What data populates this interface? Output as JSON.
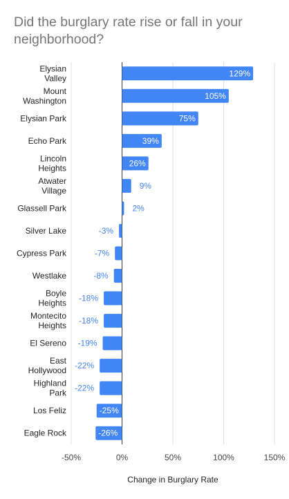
{
  "chart_data": {
    "type": "bar",
    "orientation": "horizontal",
    "title": "Did the burglary rate rise or fall in your neighborhood?",
    "xlabel": "Change in Burglary Rate",
    "ylabel": "",
    "categories": [
      [
        "Elysian",
        "Valley"
      ],
      [
        "Mount",
        "Washington"
      ],
      [
        "Elysian Park"
      ],
      [
        "Echo Park"
      ],
      [
        "Lincoln",
        "Heights"
      ],
      [
        "Atwater",
        "Village"
      ],
      [
        "Glassell Park"
      ],
      [
        "Silver Lake"
      ],
      [
        "Cypress Park"
      ],
      [
        "Westlake"
      ],
      [
        "Boyle",
        "Heights"
      ],
      [
        "Montecito",
        "Heights"
      ],
      [
        "El Sereno"
      ],
      [
        "East",
        "Hollywood"
      ],
      [
        "Highland",
        "Park"
      ],
      [
        "Los Feliz"
      ],
      [
        "Eagle Rock"
      ]
    ],
    "values": [
      129,
      105,
      75,
      39,
      26,
      9,
      2,
      -3,
      -7,
      -8,
      -18,
      -18,
      -19,
      -22,
      -22,
      -25,
      -26
    ],
    "data_labels": [
      "129%",
      "105%",
      "75%",
      "39%",
      "26%",
      "9%",
      "2%",
      "-3%",
      "-7%",
      "-8%",
      "-18%",
      "-18%",
      "-19%",
      "-22%",
      "-22%",
      "-25%",
      "-26%"
    ],
    "xlim": [
      -50,
      150
    ],
    "xticks": [
      -50,
      0,
      50,
      100,
      150
    ],
    "xtick_labels": [
      "-50%",
      "0%",
      "50%",
      "100%",
      "150%"
    ],
    "grid": true,
    "legend": "none",
    "colors": {
      "bar": "#4285f4",
      "label_inside": "#ffffff",
      "label_outside": "#4285f4",
      "gridline": "#e0e0e0",
      "zero_line": "#333333",
      "title": "#757575"
    }
  }
}
